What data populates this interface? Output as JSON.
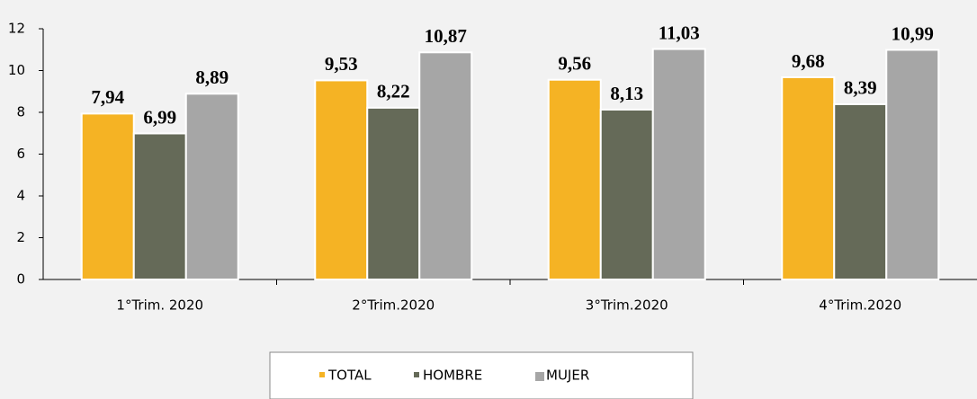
{
  "chart_data": {
    "type": "bar",
    "categories": [
      "1°Trim. 2020",
      "2°Trim.2020",
      "3°Trim.2020",
      "4°Trim.2020"
    ],
    "series": [
      {
        "name": "TOTAL",
        "color": "#f5b324",
        "values": [
          7.94,
          9.53,
          9.56,
          9.68
        ],
        "value_labels": [
          "7,94",
          "9,53",
          "9,56",
          "9,68"
        ]
      },
      {
        "name": "HOMBRE",
        "color": "#656a58",
        "values": [
          6.99,
          8.22,
          8.13,
          8.39
        ],
        "value_labels": [
          "6,99",
          "8,22",
          "8,13",
          "8,39"
        ]
      },
      {
        "name": "MUJER",
        "color": "#a6a6a6",
        "values": [
          8.89,
          10.87,
          11.03,
          10.99
        ],
        "value_labels": [
          "8,89",
          "10,87",
          "11,03",
          "10,99"
        ]
      }
    ],
    "ylim": [
      0,
      12
    ],
    "yticks": [
      0,
      2,
      4,
      6,
      8,
      10,
      12
    ],
    "grid": false,
    "legend": "bottom"
  }
}
